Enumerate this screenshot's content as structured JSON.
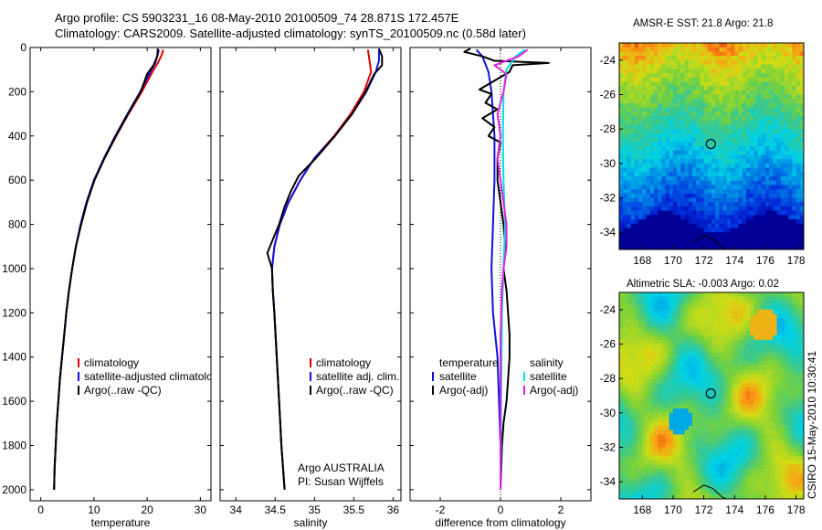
{
  "header": {
    "line1": "Argo profile: CS 5903231_16 08-May-2010 20100509_74 28.871S 172.457E",
    "line2": "Climatology: CARS2009. Satellite-adjusted climatology: synTS_20100509.nc (0.58d later)"
  },
  "side_stamp": "CSIRO 15-May-2010 10:30:41",
  "colors": {
    "climatology": "#e00000",
    "satellite": "#1010e0",
    "argo": "#000000",
    "salinity_satellite": "#00e0e0",
    "salinity_argo": "#e020e0"
  },
  "chart_data": [
    {
      "type": "line",
      "id": "temperature",
      "xlabel": "temperature",
      "xlim": [
        -2,
        32
      ],
      "ylim": [
        0,
        2050
      ],
      "y_reversed": true,
      "xticks": [
        0,
        10,
        20,
        30
      ],
      "yticks": [
        0,
        200,
        400,
        600,
        800,
        1000,
        1200,
        1400,
        1600,
        1800,
        2000
      ],
      "legend": [
        "climatology",
        "satellite-adjusted climatology",
        "Argo(..raw -QC)"
      ],
      "legend_placement": "lower-middle",
      "series": [
        {
          "name": "climatology",
          "color": "#e00000",
          "points": [
            [
              23.0,
              10
            ],
            [
              22.8,
              30
            ],
            [
              22.0,
              70
            ],
            [
              21.0,
              110
            ],
            [
              19.0,
              200
            ],
            [
              16.5,
              300
            ],
            [
              14.2,
              400
            ],
            [
              12.0,
              500
            ],
            [
              10.0,
              600
            ],
            [
              8.6,
              700
            ],
            [
              7.5,
              800
            ],
            [
              6.6,
              900
            ],
            [
              5.9,
              1000
            ],
            [
              5.3,
              1100
            ],
            [
              4.8,
              1200
            ],
            [
              4.4,
              1300
            ],
            [
              4.0,
              1400
            ],
            [
              3.6,
              1500
            ],
            [
              3.3,
              1600
            ],
            [
              3.0,
              1700
            ],
            [
              2.8,
              1800
            ],
            [
              2.6,
              1900
            ],
            [
              2.5,
              2000
            ]
          ]
        },
        {
          "name": "satellite-adjusted climatology",
          "color": "#1010e0",
          "points": [
            [
              22.2,
              10
            ],
            [
              22.0,
              30
            ],
            [
              21.5,
              70
            ],
            [
              20.6,
              110
            ],
            [
              18.7,
              200
            ],
            [
              16.3,
              300
            ],
            [
              14.0,
              400
            ],
            [
              11.9,
              500
            ],
            [
              10.0,
              600
            ],
            [
              8.6,
              700
            ],
            [
              7.5,
              800
            ],
            [
              6.6,
              900
            ],
            [
              5.9,
              1000
            ],
            [
              5.3,
              1100
            ],
            [
              4.8,
              1200
            ],
            [
              4.4,
              1300
            ],
            [
              4.0,
              1400
            ],
            [
              3.6,
              1500
            ],
            [
              3.3,
              1600
            ],
            [
              3.0,
              1700
            ],
            [
              2.8,
              1800
            ],
            [
              2.6,
              1900
            ],
            [
              2.5,
              2000
            ]
          ]
        },
        {
          "name": "Argo(..raw -QC)",
          "color": "#000000",
          "points": [
            [
              22.0,
              5
            ],
            [
              21.9,
              40
            ],
            [
              21.2,
              80
            ],
            [
              20.0,
              120
            ],
            [
              18.8,
              200
            ],
            [
              16.4,
              300
            ],
            [
              14.1,
              400
            ],
            [
              12.0,
              500
            ],
            [
              10.1,
              600
            ],
            [
              8.7,
              700
            ],
            [
              7.6,
              800
            ],
            [
              6.6,
              900
            ],
            [
              5.9,
              1000
            ],
            [
              5.3,
              1100
            ],
            [
              4.8,
              1200
            ],
            [
              4.4,
              1300
            ],
            [
              4.0,
              1400
            ],
            [
              3.6,
              1500
            ],
            [
              3.3,
              1600
            ],
            [
              3.0,
              1700
            ],
            [
              2.8,
              1800
            ],
            [
              2.6,
              1900
            ],
            [
              2.5,
              2000
            ]
          ]
        }
      ]
    },
    {
      "type": "line",
      "id": "salinity",
      "xlabel": "salinity",
      "xlim": [
        33.8,
        36.1
      ],
      "ylim": [
        0,
        2050
      ],
      "y_reversed": true,
      "xticks": [
        34,
        34.5,
        35,
        35.5,
        36
      ],
      "legend": [
        "climatology",
        "satellite adj. clim.",
        "Argo(..raw -QC)"
      ],
      "legend_placement": "lower-right",
      "annotation": [
        "Argo AUSTRALIA",
        "PI: Susan Wijffels"
      ],
      "series": [
        {
          "name": "climatology",
          "color": "#e00000",
          "points": [
            [
              35.68,
              10
            ],
            [
              35.7,
              60
            ],
            [
              35.72,
              110
            ],
            [
              35.63,
              200
            ],
            [
              35.46,
              300
            ],
            [
              35.25,
              400
            ],
            [
              35.0,
              500
            ],
            [
              34.82,
              600
            ],
            [
              34.67,
              700
            ],
            [
              34.56,
              800
            ],
            [
              34.49,
              900
            ],
            [
              34.46,
              1000
            ],
            [
              34.47,
              1100
            ],
            [
              34.49,
              1200
            ],
            [
              34.52,
              1400
            ],
            [
              34.55,
              1600
            ],
            [
              34.58,
              1800
            ],
            [
              34.62,
              2000
            ]
          ]
        },
        {
          "name": "satellite adj. clim.",
          "color": "#1010e0",
          "points": [
            [
              35.82,
              10
            ],
            [
              35.82,
              60
            ],
            [
              35.78,
              110
            ],
            [
              35.66,
              200
            ],
            [
              35.48,
              300
            ],
            [
              35.26,
              400
            ],
            [
              35.0,
              500
            ],
            [
              34.82,
              600
            ],
            [
              34.67,
              700
            ],
            [
              34.56,
              800
            ],
            [
              34.49,
              900
            ],
            [
              34.46,
              1000
            ],
            [
              34.47,
              1100
            ],
            [
              34.49,
              1200
            ],
            [
              34.52,
              1400
            ],
            [
              34.55,
              1600
            ],
            [
              34.58,
              1800
            ],
            [
              34.62,
              2000
            ]
          ]
        },
        {
          "name": "Argo(..raw -QC)",
          "color": "#000000",
          "points": [
            [
              35.82,
              5
            ],
            [
              35.86,
              40
            ],
            [
              35.86,
              80
            ],
            [
              35.76,
              120
            ],
            [
              35.65,
              200
            ],
            [
              35.48,
              300
            ],
            [
              35.26,
              400
            ],
            [
              35.02,
              500
            ],
            [
              34.8,
              580
            ],
            [
              34.7,
              650
            ],
            [
              34.62,
              720
            ],
            [
              34.55,
              800
            ],
            [
              34.48,
              860
            ],
            [
              34.4,
              930
            ],
            [
              34.46,
              1000
            ],
            [
              34.47,
              1100
            ],
            [
              34.49,
              1200
            ],
            [
              34.52,
              1400
            ],
            [
              34.55,
              1600
            ],
            [
              34.58,
              1800
            ],
            [
              34.62,
              2000
            ]
          ]
        }
      ]
    },
    {
      "type": "line",
      "id": "difference",
      "xlabel": "difference from climatology",
      "xlim": [
        -3.0,
        3.0
      ],
      "ylim": [
        0,
        2050
      ],
      "y_reversed": true,
      "xticks": [
        -2,
        0,
        2
      ],
      "legend_left_title": "temperature",
      "legend_left": [
        "satellite",
        "Argo(-adj)"
      ],
      "legend_right_title": "salinity",
      "legend_right": [
        "satellite",
        "Argo(-adj)"
      ],
      "legend_placement": "lower-middle",
      "series": [
        {
          "name": "temperature satellite",
          "color": "#1010e0",
          "points": [
            [
              -0.8,
              10
            ],
            [
              -0.6,
              40
            ],
            [
              -0.4,
              110
            ],
            [
              -0.3,
              200
            ],
            [
              -0.2,
              400
            ],
            [
              -0.2,
              600
            ],
            [
              -0.25,
              800
            ],
            [
              -0.3,
              1000
            ],
            [
              -0.25,
              1200
            ],
            [
              -0.1,
              1400
            ],
            [
              -0.05,
              1600
            ],
            [
              0,
              1800
            ],
            [
              0,
              2000
            ]
          ]
        },
        {
          "name": "temperature Argo(-adj)",
          "color": "#000000",
          "points": [
            [
              -1.0,
              5
            ],
            [
              -1.2,
              20
            ],
            [
              -0.6,
              40
            ],
            [
              -0.2,
              60
            ],
            [
              1.6,
              70
            ],
            [
              0.4,
              80
            ],
            [
              0.3,
              110
            ],
            [
              -0.7,
              190
            ],
            [
              -0.3,
              210
            ],
            [
              -0.5,
              250
            ],
            [
              -0.1,
              280
            ],
            [
              -0.6,
              320
            ],
            [
              -0.2,
              360
            ],
            [
              -0.4,
              400
            ],
            [
              0.0,
              430
            ],
            [
              -0.1,
              500
            ],
            [
              -0.1,
              600
            ],
            [
              0.0,
              700
            ],
            [
              0.1,
              800
            ],
            [
              0.15,
              900
            ],
            [
              0.1,
              1000
            ],
            [
              0.2,
              1100
            ],
            [
              0.25,
              1200
            ],
            [
              0.3,
              1300
            ],
            [
              0.3,
              1400
            ],
            [
              0.25,
              1500
            ],
            [
              0.2,
              1600
            ],
            [
              0.1,
              1700
            ],
            [
              0.05,
              1800
            ],
            [
              0.0,
              2000
            ]
          ]
        },
        {
          "name": "salinity satellite",
          "color": "#00e0e0",
          "points": [
            [
              0.8,
              10
            ],
            [
              0.5,
              40
            ],
            [
              0.2,
              100
            ],
            [
              0.1,
              200
            ],
            [
              0.08,
              400
            ],
            [
              0.1,
              600
            ],
            [
              0.15,
              800
            ],
            [
              0.1,
              1000
            ],
            [
              0.05,
              1200
            ],
            [
              0.02,
              1600
            ],
            [
              0.0,
              2000
            ]
          ]
        },
        {
          "name": "salinity Argo(-adj)",
          "color": "#e020e0",
          "points": [
            [
              0.9,
              10
            ],
            [
              0.6,
              40
            ],
            [
              -0.2,
              80
            ],
            [
              0.2,
              120
            ],
            [
              0.1,
              200
            ],
            [
              -0.1,
              300
            ],
            [
              0.0,
              400
            ],
            [
              -0.1,
              500
            ],
            [
              0.0,
              600
            ],
            [
              0.1,
              700
            ],
            [
              0.2,
              800
            ],
            [
              0.2,
              900
            ],
            [
              0.1,
              1000
            ],
            [
              0.05,
              1100
            ],
            [
              0.0,
              1300
            ],
            [
              0.0,
              2000
            ]
          ]
        }
      ]
    },
    {
      "type": "heatmap",
      "id": "sst-map",
      "title": "AMSR-E SST: 21.8 Argo: 21.8",
      "xlim": [
        166.5,
        178.5
      ],
      "ylim": [
        -35,
        -23
      ],
      "xticks": [
        168,
        170,
        172,
        174,
        176,
        178
      ],
      "yticks": [
        -24,
        -26,
        -28,
        -30,
        -32,
        -34
      ],
      "marker": {
        "lon": 172.457,
        "lat": -28.871
      }
    },
    {
      "type": "heatmap",
      "id": "sla-map",
      "title": "Altimetric SLA: -0.003 Argo: 0.02",
      "xlim": [
        166.5,
        178.5
      ],
      "ylim": [
        -35,
        -23
      ],
      "xticks": [
        168,
        170,
        172,
        174,
        176,
        178
      ],
      "yticks": [
        -24,
        -26,
        -28,
        -30,
        -32,
        -34
      ],
      "marker": {
        "lon": 172.457,
        "lat": -28.871
      }
    }
  ]
}
